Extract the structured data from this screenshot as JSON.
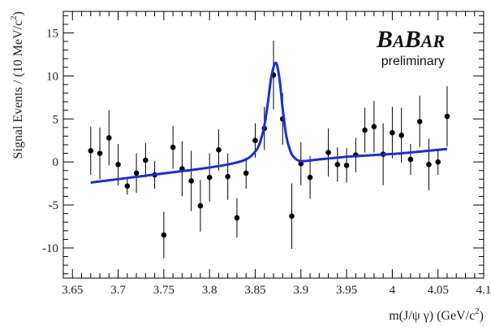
{
  "chart_data": {
    "type": "scatter",
    "xlabel_parts": {
      "prefix": "m(J/ψ γ) (GeV/c",
      "sup": "2",
      "suffix": ")"
    },
    "ylabel_parts": {
      "prefix": "Signal Events / (10 MeV/c",
      "sup": "2",
      "suffix": ")"
    },
    "xlim": [
      3.64,
      4.1
    ],
    "ylim": [
      -13.5,
      17.5
    ],
    "x_ticks": [
      "3.65",
      "3.7",
      "3.75",
      "3.8",
      "3.85",
      "3.9",
      "3.95",
      "4",
      "4.05",
      "4.1"
    ],
    "y_ticks": [
      "-10",
      "-5",
      "0",
      "5",
      "10",
      "15"
    ],
    "grid": false,
    "logo": {
      "text": "BABAR",
      "subtitle": "preliminary"
    },
    "series": [
      {
        "type": "errorbar",
        "color": "#000000",
        "points": [
          {
            "x": 3.67,
            "y": 1.3,
            "err": 2.8
          },
          {
            "x": 3.68,
            "y": 1.0,
            "err": 3.0
          },
          {
            "x": 3.69,
            "y": 2.8,
            "err": 3.2
          },
          {
            "x": 3.7,
            "y": -0.3,
            "err": 2.4
          },
          {
            "x": 3.71,
            "y": -2.8,
            "err": 1.0
          },
          {
            "x": 3.72,
            "y": -1.3,
            "err": 2.3
          },
          {
            "x": 3.73,
            "y": 0.2,
            "err": 2.0
          },
          {
            "x": 3.74,
            "y": -1.5,
            "err": 1.6
          },
          {
            "x": 3.75,
            "y": -8.5,
            "err": 2.7
          },
          {
            "x": 3.76,
            "y": 1.7,
            "err": 2.5
          },
          {
            "x": 3.77,
            "y": -0.8,
            "err": 3.2
          },
          {
            "x": 3.78,
            "y": -2.2,
            "err": 3.5
          },
          {
            "x": 3.79,
            "y": -5.1,
            "err": 3.0
          },
          {
            "x": 3.8,
            "y": -1.8,
            "err": 2.8
          },
          {
            "x": 3.81,
            "y": 1.4,
            "err": 2.4
          },
          {
            "x": 3.82,
            "y": -1.7,
            "err": 2.7
          },
          {
            "x": 3.83,
            "y": -6.5,
            "err": 2.3
          },
          {
            "x": 3.84,
            "y": -1.3,
            "err": 1.8
          },
          {
            "x": 3.85,
            "y": 2.5,
            "err": 2.0
          },
          {
            "x": 3.86,
            "y": 3.9,
            "err": 2.5
          },
          {
            "x": 3.87,
            "y": 10.1,
            "err": 4.0
          },
          {
            "x": 3.88,
            "y": 5.0,
            "err": 3.0
          },
          {
            "x": 3.89,
            "y": -6.3,
            "err": 3.8
          },
          {
            "x": 3.9,
            "y": -0.2,
            "err": 2.5
          },
          {
            "x": 3.91,
            "y": -1.8,
            "err": 2.5
          },
          {
            "x": 3.93,
            "y": 1.1,
            "err": 2.8
          },
          {
            "x": 3.94,
            "y": -0.3,
            "err": 2.0
          },
          {
            "x": 3.95,
            "y": -0.4,
            "err": 2.0
          },
          {
            "x": 3.96,
            "y": 0.8,
            "err": 2.0
          },
          {
            "x": 3.97,
            "y": 3.7,
            "err": 2.6
          },
          {
            "x": 3.98,
            "y": 4.1,
            "err": 3.0
          },
          {
            "x": 3.99,
            "y": 0.9,
            "err": 3.6
          },
          {
            "x": 4.0,
            "y": 3.4,
            "err": 3.0
          },
          {
            "x": 4.01,
            "y": 3.1,
            "err": 3.2
          },
          {
            "x": 4.02,
            "y": 0.3,
            "err": 1.8
          },
          {
            "x": 4.03,
            "y": 4.7,
            "err": 3.0
          },
          {
            "x": 4.04,
            "y": -0.3,
            "err": 3.0
          },
          {
            "x": 4.05,
            "y": 0.0,
            "err": 1.5
          },
          {
            "x": 4.06,
            "y": 5.3,
            "err": 3.5
          }
        ]
      },
      {
        "type": "line",
        "color": "#1a2fd0",
        "x": [
          3.67,
          3.7,
          3.73,
          3.76,
          3.79,
          3.82,
          3.84,
          3.85,
          3.855,
          3.86,
          3.864,
          3.867,
          3.87,
          3.872,
          3.874,
          3.877,
          3.88,
          3.884,
          3.888,
          3.892,
          3.9,
          3.92,
          3.95,
          3.98,
          4.01,
          4.04,
          4.06
        ],
        "y": [
          -2.4,
          -2.0,
          -1.6,
          -1.2,
          -0.8,
          -0.3,
          0.3,
          1.2,
          2.2,
          4.2,
          7.0,
          9.5,
          11.0,
          11.5,
          11.2,
          9.3,
          6.2,
          3.0,
          1.4,
          0.6,
          0.1,
          0.3,
          0.6,
          0.8,
          1.0,
          1.3,
          1.5
        ]
      }
    ]
  }
}
